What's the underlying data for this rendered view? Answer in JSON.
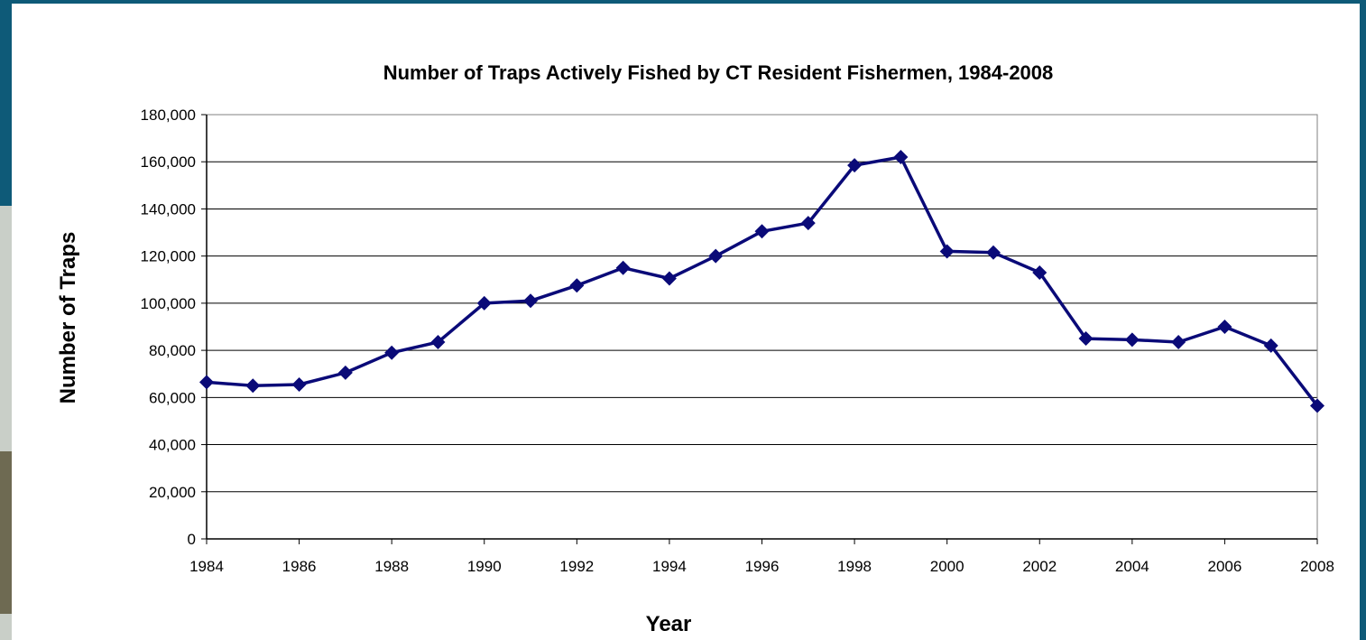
{
  "colors": {
    "frame": "#0e5a78",
    "series": "#0a0a78",
    "grid": "#000000",
    "background": "#ffffff"
  },
  "chart_data": {
    "type": "line",
    "title": "Number of Traps Actively Fished by CT Resident Fishermen, 1984-2008",
    "xlabel": "Year",
    "ylabel": "Number of Traps",
    "xlim": [
      1984,
      2008
    ],
    "ylim": [
      0,
      180000
    ],
    "x_ticks": [
      "1984",
      "1986",
      "1988",
      "1990",
      "1992",
      "1994",
      "1996",
      "1998",
      "2000",
      "2002",
      "2004",
      "2006",
      "2008"
    ],
    "y_ticks": [
      "0",
      "20,000",
      "40,000",
      "60,000",
      "80,000",
      "100,000",
      "120,000",
      "140,000",
      "160,000",
      "180,000"
    ],
    "grid": true,
    "legend": "none",
    "marker": "diamond",
    "series": [
      {
        "x": [
          1984,
          1985,
          1986,
          1987,
          1988,
          1989,
          1990,
          1991,
          1992,
          1993,
          1994,
          1995,
          1996,
          1997,
          1998,
          1999,
          2000,
          2001,
          2002,
          2003,
          2004,
          2005,
          2006,
          2007,
          2008
        ],
        "values": [
          66500,
          65000,
          65500,
          70500,
          79000,
          83500,
          100000,
          101000,
          107500,
          115000,
          110500,
          120000,
          130500,
          134000,
          158500,
          162000,
          122000,
          121500,
          113000,
          85000,
          84500,
          83500,
          90000,
          82000,
          56500
        ]
      }
    ]
  }
}
